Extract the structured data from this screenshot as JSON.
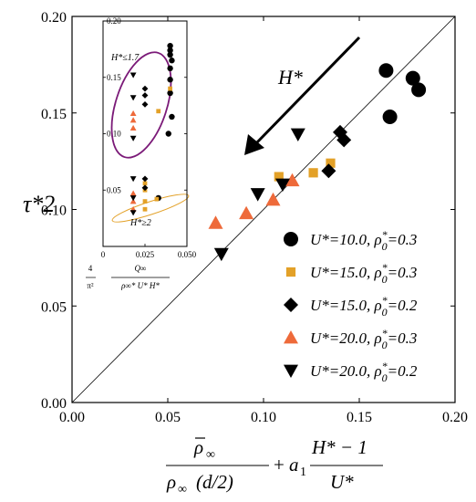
{
  "chart_data": [
    {
      "type": "scatter",
      "ylabel": "τ*2",
      "xlim": [
        0,
        0.2
      ],
      "ylim": [
        0,
        0.2
      ],
      "xticks": [
        "0.00",
        "0.05",
        "0.10",
        "0.15",
        "0.20"
      ],
      "yticks": [
        "0.00",
        "0.05",
        "0.10",
        "0.15",
        "0.20"
      ],
      "reference_line": "y = x",
      "annotation": {
        "text": "H*",
        "arrow": "points toward lower-left"
      },
      "xlabel_parts": {
        "rho_bar": "ρ",
        "rho_bar_sub": "∞",
        "den": "ρ",
        "den_sub": "∞",
        "den_arg": "(d/2)",
        "plus": "+",
        "a": "a",
        "a_sub": "1",
        "num2": "H* − 1",
        "den2": "U*"
      },
      "series": [
        {
          "name": "U*=10.0, ρ0*=0.3",
          "marker": "circle",
          "color": "#000000",
          "x": [
            0.164,
            0.178,
            0.181,
            0.166
          ],
          "y": [
            0.172,
            0.168,
            0.162,
            0.148
          ]
        },
        {
          "name": "U*=15.0, ρ0*=0.3",
          "marker": "square",
          "color": "#E3A128",
          "x": [
            0.108,
            0.126,
            0.135
          ],
          "y": [
            0.117,
            0.119,
            0.124
          ]
        },
        {
          "name": "U*=15.0, ρ0*=0.2",
          "marker": "diamond",
          "color": "#000000",
          "x": [
            0.14,
            0.142,
            0.134
          ],
          "y": [
            0.14,
            0.136,
            0.12
          ]
        },
        {
          "name": "U*=20.0, ρ0*=0.3",
          "marker": "triangle-up",
          "color": "#EE6A3A",
          "x": [
            0.075,
            0.091,
            0.105,
            0.115
          ],
          "y": [
            0.093,
            0.098,
            0.105,
            0.115
          ]
        },
        {
          "name": "U*=20.0, ρ0*=0.2",
          "marker": "triangle-down",
          "color": "#000000",
          "x": [
            0.078,
            0.097,
            0.11,
            0.118
          ],
          "y": [
            0.077,
            0.108,
            0.113,
            0.139
          ]
        }
      ],
      "legend": {
        "placement": "lower-right",
        "entries": [
          {
            "u": "U*=10.0,",
            "rho": "ρ",
            "rho_sup": "*",
            "rho_sub": "0",
            "val": "=0.3",
            "marker": "circle",
            "color": "#000000"
          },
          {
            "u": "U*=15.0,",
            "rho": "ρ",
            "rho_sup": "*",
            "rho_sub": "0",
            "val": "=0.3",
            "marker": "square",
            "color": "#E3A128"
          },
          {
            "u": "U*=15.0,",
            "rho": "ρ",
            "rho_sup": "*",
            "rho_sub": "0",
            "val": "=0.2",
            "marker": "diamond",
            "color": "#000000"
          },
          {
            "u": "U*=20.0,",
            "rho": "ρ",
            "rho_sup": "*",
            "rho_sub": "0",
            "val": "=0.3",
            "marker": "triangle-up",
            "color": "#EE6A3A"
          },
          {
            "u": "U*=20.0,",
            "rho": "ρ",
            "rho_sup": "*",
            "rho_sub": "0",
            "val": "=0.2",
            "marker": "triangle-down",
            "color": "#000000"
          }
        ]
      }
    },
    {
      "type": "scatter",
      "role": "inset",
      "xlim": [
        0,
        0.05
      ],
      "ylim": [
        0,
        0.2
      ],
      "xticks": [
        "0",
        "0.025",
        "0.050"
      ],
      "yticks": [
        "0.05",
        "0.10",
        "0.15",
        "0.20"
      ],
      "xlabel_parts": {
        "four": "4",
        "pi2": "π²",
        "num": "Q∞",
        "den": "ρ∞* U* H*"
      },
      "ellipse_labels": [
        {
          "text": "H*≤1.7",
          "color": "#7B1A78"
        },
        {
          "text": "H*≥2",
          "color": "#E3A128"
        }
      ],
      "series": [
        {
          "marker": "circle",
          "color": "#000000",
          "x": [
            0.04,
            0.04,
            0.04,
            0.041,
            0.04,
            0.04,
            0.04,
            0.041,
            0.039,
            0.033
          ],
          "y": [
            0.178,
            0.174,
            0.17,
            0.165,
            0.158,
            0.148,
            0.136,
            0.115,
            0.1,
            0.043
          ]
        },
        {
          "marker": "square",
          "color": "#E3A128",
          "x": [
            0.04,
            0.033,
            0.032,
            0.025,
            0.025,
            0.025,
            0.025
          ],
          "y": [
            0.14,
            0.12,
            0.042,
            0.056,
            0.05,
            0.04,
            0.033
          ]
        },
        {
          "marker": "diamond",
          "color": "#000000",
          "x": [
            0.025,
            0.025,
            0.025,
            0.025,
            0.025
          ],
          "y": [
            0.14,
            0.134,
            0.126,
            0.06,
            0.052
          ]
        },
        {
          "marker": "triangle-up",
          "color": "#EE6A3A",
          "x": [
            0.018,
            0.018,
            0.018,
            0.018,
            0.018,
            0.018
          ],
          "y": [
            0.118,
            0.112,
            0.105,
            0.047,
            0.04,
            0.033
          ]
        },
        {
          "marker": "triangle-down",
          "color": "#000000",
          "x": [
            0.018,
            0.018,
            0.018,
            0.018,
            0.018,
            0.018
          ],
          "y": [
            0.152,
            0.132,
            0.096,
            0.06,
            0.043,
            0.03
          ]
        }
      ]
    }
  ]
}
